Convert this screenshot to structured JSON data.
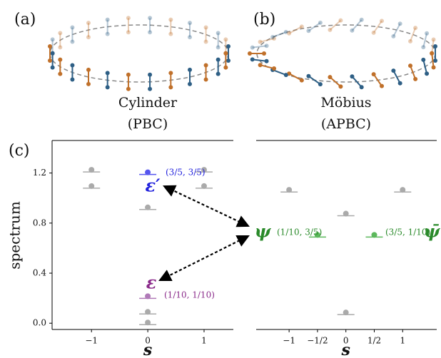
{
  "diagrams": [
    {
      "label": "(a)",
      "name": "Cylinder",
      "condition": "(PBC)"
    },
    {
      "label": "(b)",
      "name": "Möbius",
      "condition": "(APBC)"
    }
  ],
  "panel_label": "(c)",
  "chart_data": [
    {
      "type": "scatter",
      "ylabel": "spectrum",
      "xlabel": "s",
      "xlim": [
        -1.7,
        1.52
      ],
      "ylim": [
        -0.05,
        1.46
      ],
      "xticks": [
        {
          "value": -1,
          "label": "−1"
        },
        0,
        1
      ],
      "yticks": [
        {
          "value": 0,
          "label": "0.0"
        },
        0.4,
        0.8,
        1.2
      ],
      "series": [
        {
          "color": "#aaaaaa",
          "x": [
            -1,
            -1,
            0,
            0,
            0,
            1,
            1
          ],
          "values": [
            1.22,
            1.09,
            0.92,
            0.085,
            0.0,
            1.22,
            1.09
          ]
        },
        {
          "color": "#5555ee",
          "x": [
            0
          ],
          "values": [
            1.2
          ]
        },
        {
          "color": "#b07ab8",
          "x": [
            0
          ],
          "values": [
            0.21
          ]
        }
      ],
      "annotations": [
        {
          "symbol": "ε′",
          "label": "(3/5, 3/5)",
          "color": "#2222dd"
        },
        {
          "symbol": "ε",
          "label": "(1/10, 1/10)",
          "color": "#8a2a8a"
        }
      ]
    },
    {
      "type": "scatter",
      "xlabel": "s",
      "xlim": [
        -1.58,
        1.6
      ],
      "ylim": [
        -0.05,
        1.46
      ],
      "xticks": [
        {
          "value": -1,
          "label": "−1"
        },
        {
          "value": -0.5,
          "label": "−1/2"
        },
        0,
        {
          "value": 0.5,
          "label": "1/2"
        },
        1
      ],
      "series": [
        {
          "color": "#aaaaaa",
          "x": [
            -1,
            0,
            0,
            1
          ],
          "values": [
            1.06,
            0.87,
            0.08,
            1.06
          ]
        },
        {
          "color": "#5cb85c",
          "x": [
            -0.5,
            0.5
          ],
          "values": [
            0.7,
            0.7
          ]
        }
      ],
      "annotations": [
        {
          "symbol": "ψ",
          "label": "(1/10, 3/5)",
          "color": "#2a8a2a"
        },
        {
          "symbol": "ψ̄",
          "label": "(3/5, 1/10)",
          "color": "#2a8a2a"
        }
      ]
    }
  ]
}
